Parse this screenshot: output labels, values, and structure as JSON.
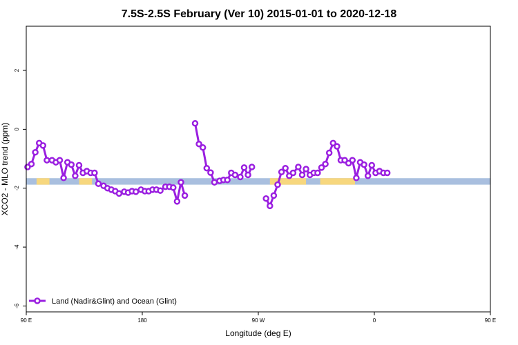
{
  "chart_data": {
    "type": "line",
    "title": "7.5S-2.5S February (Ver 10)   2015-01-01 to 2020-12-18",
    "xlabel": "Longitude (deg E)",
    "ylabel": "XCO2 - MLO trend (ppm)",
    "xlim": [
      90,
      450
    ],
    "ylim": [
      -6.2,
      3.5
    ],
    "x_ticks": [
      {
        "value": 90,
        "label": "90 E"
      },
      {
        "value": 180,
        "label": "180"
      },
      {
        "value": 270,
        "label": "90 W"
      },
      {
        "value": 360,
        "label": "0"
      },
      {
        "value": 450,
        "label": "90 E"
      },
      {
        "value": 540,
        "label": "180"
      }
    ],
    "y_ticks": [
      {
        "value": 2,
        "label": "2"
      },
      {
        "value": 0,
        "label": "0"
      },
      {
        "value": -2,
        "label": "-2"
      },
      {
        "value": -4,
        "label": "-4"
      },
      {
        "value": -6,
        "label": "-6"
      }
    ],
    "grid": false,
    "legend_position": "bottom-left",
    "colors": {
      "series": "#9a1fe0",
      "ocean_band": "#a9bfdf",
      "land_band": "#f7d77e"
    },
    "surface_band": {
      "y_range": [
        -1.88,
        -1.66
      ],
      "land_segments": [
        [
          98,
          108
        ],
        [
          131,
          141
        ],
        [
          279,
          307
        ],
        [
          318,
          345
        ],
        [
          458,
          468
        ],
        [
          491,
          501
        ]
      ]
    },
    "series": [
      {
        "name": "Land (Nadir&Glint) and Ocean (Glint)",
        "points": [
          [
            91,
            -1.28
          ],
          [
            94,
            -1.18
          ],
          [
            97,
            -0.78
          ],
          [
            100,
            -0.47
          ],
          [
            103,
            -0.55
          ],
          [
            106,
            -1.05
          ],
          [
            110,
            -1.05
          ],
          [
            113,
            -1.12
          ],
          [
            116,
            -1.05
          ],
          [
            119,
            -1.65
          ],
          [
            122,
            -1.12
          ],
          [
            125,
            -1.2
          ],
          [
            128,
            -1.58
          ],
          [
            131,
            -1.22
          ],
          [
            134,
            -1.48
          ],
          [
            137,
            -1.42
          ],
          [
            140,
            -1.48
          ],
          [
            143,
            -1.48
          ],
          [
            146,
            -1.85
          ],
          [
            150,
            -1.92
          ],
          [
            153,
            -2.0
          ],
          [
            156,
            -2.05
          ],
          [
            159,
            -2.1
          ],
          [
            162,
            -2.18
          ],
          [
            166,
            -2.12
          ],
          [
            169,
            -2.15
          ],
          [
            172,
            -2.1
          ],
          [
            175,
            -2.12
          ],
          [
            179,
            -2.05
          ],
          [
            182,
            -2.1
          ],
          [
            185,
            -2.1
          ],
          [
            188,
            -2.05
          ],
          [
            191,
            -2.05
          ],
          [
            194,
            -2.08
          ],
          [
            198,
            -1.95
          ],
          [
            201,
            -1.95
          ],
          [
            204,
            -1.98
          ],
          [
            207,
            -2.45
          ],
          [
            210,
            -1.8
          ],
          [
            213,
            -2.25
          ],
          [
            221,
            0.2
          ],
          [
            224,
            -0.5
          ],
          [
            227,
            -0.62
          ],
          [
            230,
            -1.32
          ],
          [
            233,
            -1.47
          ],
          [
            236,
            -1.8
          ],
          [
            240,
            -1.75
          ],
          [
            243,
            -1.72
          ],
          [
            246,
            -1.72
          ],
          [
            249,
            -1.48
          ],
          [
            252,
            -1.55
          ],
          [
            256,
            -1.62
          ],
          [
            259,
            -1.3
          ],
          [
            262,
            -1.55
          ],
          [
            265,
            -1.28
          ],
          [
            276,
            -2.35
          ],
          [
            279,
            -2.6
          ],
          [
            282,
            -2.25
          ],
          [
            285,
            -1.88
          ],
          [
            288,
            -1.45
          ],
          [
            291,
            -1.32
          ],
          [
            294,
            -1.58
          ],
          [
            297,
            -1.48
          ],
          [
            301,
            -1.28
          ],
          [
            304,
            -1.55
          ],
          [
            307,
            -1.35
          ],
          [
            310,
            -1.55
          ],
          [
            313,
            -1.48
          ],
          [
            316,
            -1.48
          ],
          [
            319,
            -1.3
          ],
          [
            322,
            -1.18
          ],
          [
            325,
            -0.8
          ],
          [
            328,
            -0.47
          ],
          [
            331,
            -0.58
          ],
          [
            334,
            -1.05
          ],
          [
            337,
            -1.05
          ],
          [
            340,
            -1.15
          ],
          [
            343,
            -1.05
          ],
          [
            346,
            -1.65
          ],
          [
            349,
            -1.12
          ],
          [
            352,
            -1.2
          ],
          [
            355,
            -1.58
          ],
          [
            358,
            -1.22
          ],
          [
            361,
            -1.48
          ],
          [
            364,
            -1.42
          ],
          [
            367,
            -1.48
          ],
          [
            370,
            -1.48
          ]
        ],
        "breaks_after_index": [
          39,
          54
        ]
      }
    ]
  }
}
